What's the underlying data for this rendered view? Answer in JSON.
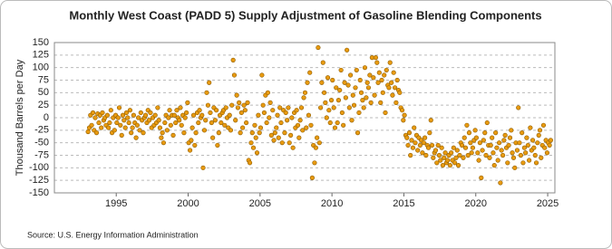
{
  "chart_data": {
    "type": "scatter",
    "title": "Monthly West Coast (PADD 5) Supply Adjustment of Gasoline Blending Components",
    "y_label": "Thousand Barrels per Day",
    "source": "Source: U.S. Energy Information Administration",
    "xlim": [
      1990.7,
      2025.5
    ],
    "xticks": [
      1995,
      2000,
      2005,
      2010,
      2015,
      2020,
      2025
    ],
    "ylim": [
      -150,
      150
    ],
    "yticks": [
      -150,
      -125,
      -100,
      -75,
      -50,
      -25,
      0,
      25,
      50,
      75,
      100,
      125,
      150
    ],
    "grid": true,
    "series": [
      {
        "color": "#e89a10",
        "x": [
          1993.04,
          1993.13,
          1993.21,
          1993.29,
          1993.38,
          1993.46,
          1993.54,
          1993.63,
          1993.71,
          1993.79,
          1993.88,
          1993.96,
          1994.04,
          1994.13,
          1994.21,
          1994.29,
          1994.38,
          1994.46,
          1994.54,
          1994.63,
          1994.71,
          1994.79,
          1994.88,
          1994.96,
          1995.04,
          1995.13,
          1995.21,
          1995.29,
          1995.38,
          1995.46,
          1995.54,
          1995.63,
          1995.71,
          1995.79,
          1995.88,
          1995.96,
          1996.04,
          1996.13,
          1996.21,
          1996.29,
          1996.38,
          1996.46,
          1996.54,
          1996.63,
          1996.71,
          1996.79,
          1996.88,
          1996.96,
          1997.04,
          1997.13,
          1997.21,
          1997.29,
          1997.38,
          1997.46,
          1997.54,
          1997.63,
          1997.71,
          1997.79,
          1997.88,
          1997.96,
          1998.04,
          1998.13,
          1998.21,
          1998.29,
          1998.38,
          1998.46,
          1998.54,
          1998.63,
          1998.71,
          1998.79,
          1998.88,
          1998.96,
          1999.04,
          1999.13,
          1999.21,
          1999.29,
          1999.38,
          1999.46,
          1999.54,
          1999.63,
          1999.71,
          1999.79,
          1999.88,
          1999.96,
          2000.04,
          2000.13,
          2000.21,
          2000.29,
          2000.38,
          2000.46,
          2000.54,
          2000.63,
          2000.71,
          2000.79,
          2000.88,
          2000.96,
          2001.04,
          2001.13,
          2001.21,
          2001.29,
          2001.38,
          2001.46,
          2001.54,
          2001.63,
          2001.71,
          2001.79,
          2001.88,
          2001.96,
          2002.04,
          2002.13,
          2002.21,
          2002.29,
          2002.38,
          2002.46,
          2002.54,
          2002.63,
          2002.71,
          2002.79,
          2002.88,
          2002.96,
          2003.04,
          2003.13,
          2003.21,
          2003.29,
          2003.38,
          2003.46,
          2003.54,
          2003.63,
          2003.71,
          2003.79,
          2003.88,
          2003.96,
          2004.04,
          2004.13,
          2004.21,
          2004.29,
          2004.38,
          2004.46,
          2004.54,
          2004.63,
          2004.71,
          2004.79,
          2004.88,
          2004.96,
          2005.04,
          2005.13,
          2005.21,
          2005.29,
          2005.38,
          2005.46,
          2005.54,
          2005.63,
          2005.71,
          2005.79,
          2005.88,
          2005.96,
          2006.04,
          2006.13,
          2006.21,
          2006.29,
          2006.38,
          2006.46,
          2006.54,
          2006.63,
          2006.71,
          2006.79,
          2006.88,
          2006.96,
          2007.04,
          2007.13,
          2007.21,
          2007.29,
          2007.38,
          2007.46,
          2007.54,
          2007.63,
          2007.71,
          2007.79,
          2007.88,
          2007.96,
          2008.04,
          2008.13,
          2008.21,
          2008.29,
          2008.38,
          2008.46,
          2008.54,
          2008.63,
          2008.71,
          2008.79,
          2008.88,
          2008.96,
          2009.04,
          2009.13,
          2009.21,
          2009.29,
          2009.38,
          2009.46,
          2009.54,
          2009.63,
          2009.71,
          2009.79,
          2009.88,
          2009.96,
          2010.04,
          2010.13,
          2010.21,
          2010.29,
          2010.38,
          2010.46,
          2010.54,
          2010.63,
          2010.71,
          2010.79,
          2010.88,
          2010.96,
          2011.04,
          2011.13,
          2011.21,
          2011.29,
          2011.38,
          2011.46,
          2011.54,
          2011.63,
          2011.71,
          2011.79,
          2011.88,
          2011.96,
          2012.04,
          2012.13,
          2012.21,
          2012.29,
          2012.38,
          2012.46,
          2012.54,
          2012.63,
          2012.71,
          2012.79,
          2012.88,
          2012.96,
          2013.04,
          2013.13,
          2013.21,
          2013.29,
          2013.38,
          2013.46,
          2013.54,
          2013.63,
          2013.71,
          2013.79,
          2013.88,
          2013.96,
          2014.04,
          2014.13,
          2014.21,
          2014.29,
          2014.38,
          2014.46,
          2014.54,
          2014.63,
          2014.71,
          2014.79,
          2014.88,
          2014.96,
          2015.04,
          2015.13,
          2015.21,
          2015.29,
          2015.38,
          2015.46,
          2015.54,
          2015.63,
          2015.71,
          2015.79,
          2015.88,
          2015.96,
          2016.04,
          2016.13,
          2016.21,
          2016.29,
          2016.38,
          2016.46,
          2016.54,
          2016.63,
          2016.71,
          2016.79,
          2016.88,
          2016.96,
          2017.04,
          2017.13,
          2017.21,
          2017.29,
          2017.38,
          2017.46,
          2017.54,
          2017.63,
          2017.71,
          2017.79,
          2017.88,
          2017.96,
          2018.04,
          2018.13,
          2018.21,
          2018.29,
          2018.38,
          2018.46,
          2018.54,
          2018.63,
          2018.71,
          2018.79,
          2018.88,
          2018.96,
          2019.04,
          2019.13,
          2019.21,
          2019.29,
          2019.38,
          2019.46,
          2019.54,
          2019.63,
          2019.71,
          2019.79,
          2019.88,
          2019.96,
          2020.04,
          2020.13,
          2020.21,
          2020.29,
          2020.38,
          2020.46,
          2020.54,
          2020.63,
          2020.71,
          2020.79,
          2020.88,
          2020.96,
          2021.04,
          2021.13,
          2021.21,
          2021.29,
          2021.38,
          2021.46,
          2021.54,
          2021.63,
          2021.71,
          2021.79,
          2021.88,
          2021.96,
          2022.04,
          2022.13,
          2022.21,
          2022.29,
          2022.38,
          2022.46,
          2022.54,
          2022.63,
          2022.71,
          2022.79,
          2022.88,
          2022.96,
          2023.04,
          2023.13,
          2023.21,
          2023.29,
          2023.38,
          2023.46,
          2023.54,
          2023.63,
          2023.71,
          2023.79,
          2023.88,
          2023.96,
          2024.04,
          2024.13,
          2024.21,
          2024.29,
          2024.38,
          2024.46,
          2024.54,
          2024.63,
          2024.71,
          2024.79,
          2024.88,
          2024.96,
          2025.04,
          2025.13,
          2025.21
        ],
        "values": [
          -28,
          -20,
          5,
          -15,
          10,
          -25,
          0,
          -30,
          8,
          -10,
          5,
          -20,
          10,
          -5,
          0,
          -15,
          5,
          -20,
          -10,
          15,
          -30,
          0,
          -25,
          5,
          -10,
          0,
          20,
          -15,
          -35,
          5,
          -5,
          -20,
          10,
          0,
          -10,
          15,
          -30,
          -20,
          5,
          -10,
          -40,
          -15,
          0,
          -25,
          10,
          -5,
          -30,
          0,
          5,
          -10,
          15,
          -5,
          10,
          -20,
          0,
          -15,
          5,
          -10,
          20,
          -5,
          -20,
          -40,
          -30,
          -50,
          -10,
          5,
          -25,
          0,
          15,
          -15,
          5,
          -35,
          5,
          -10,
          15,
          0,
          -5,
          20,
          -15,
          5,
          -30,
          0,
          10,
          30,
          -50,
          -65,
          -45,
          -20,
          5,
          -55,
          -30,
          10,
          -10,
          15,
          0,
          5,
          -100,
          -25,
          -5,
          50,
          25,
          70,
          10,
          -10,
          -40,
          20,
          -5,
          15,
          -55,
          -30,
          5,
          -10,
          10,
          15,
          -15,
          20,
          0,
          -20,
          5,
          -25,
          25,
          115,
          85,
          -5,
          45,
          20,
          30,
          -30,
          10,
          -20,
          25,
          15,
          -10,
          30,
          -85,
          -90,
          -50,
          -30,
          -60,
          -15,
          -40,
          -70,
          5,
          -30,
          -20,
          85,
          25,
          10,
          45,
          -10,
          50,
          0,
          30,
          -35,
          15,
          -45,
          -30,
          -20,
          5,
          -40,
          20,
          -10,
          -50,
          15,
          -30,
          10,
          -5,
          20,
          -50,
          -35,
          0,
          -60,
          10,
          -20,
          15,
          -15,
          -40,
          -5,
          20,
          -25,
          40,
          50,
          -20,
          70,
          5,
          90,
          -15,
          -120,
          -55,
          -90,
          -60,
          -40,
          140,
          -50,
          20,
          70,
          110,
          50,
          30,
          0,
          80,
          15,
          -10,
          35,
          75,
          20,
          -20,
          60,
          -10,
          35,
          55,
          95,
          10,
          -15,
          70,
          40,
          135,
          65,
          20,
          85,
          -5,
          45,
          25,
          60,
          95,
          -30,
          10,
          75,
          50,
          35,
          20,
          100,
          40,
          70,
          60,
          85,
          30,
          120,
          80,
          45,
          120,
          110,
          70,
          90,
          30,
          75,
          50,
          85,
          10,
          95,
          65,
          60,
          110,
          70,
          45,
          90,
          60,
          30,
          75,
          55,
          50,
          20,
          15,
          -5,
          5,
          -35,
          -40,
          -55,
          -30,
          -75,
          -45,
          -60,
          -20,
          -50,
          -35,
          -65,
          -40,
          -55,
          -45,
          -70,
          -50,
          -40,
          -75,
          -55,
          -60,
          -30,
          -5,
          -55,
          -80,
          -70,
          -65,
          -90,
          -55,
          -75,
          -85,
          -60,
          -95,
          -80,
          -70,
          -90,
          -85,
          -75,
          -95,
          -70,
          -85,
          -60,
          -90,
          -80,
          -65,
          -95,
          -75,
          -50,
          -55,
          -80,
          -40,
          -60,
          -15,
          -75,
          -30,
          -50,
          -70,
          -60,
          -45,
          -25,
          -40,
          -70,
          -85,
          -50,
          -120,
          -65,
          -45,
          -30,
          -75,
          -10,
          -55,
          -80,
          -55,
          -40,
          -70,
          -95,
          -30,
          -60,
          -85,
          -50,
          -130,
          -65,
          -75,
          -45,
          -35,
          -60,
          -90,
          -55,
          -40,
          -25,
          -70,
          -80,
          -100,
          -50,
          -65,
          20,
          -50,
          -75,
          -30,
          -90,
          -60,
          -70,
          -40,
          -55,
          -85,
          -20,
          -65,
          -45,
          -60,
          -75,
          -90,
          -50,
          -35,
          -25,
          -80,
          -55,
          -15,
          -60,
          -45,
          -70,
          -50,
          -55,
          -45
        ]
      }
    ]
  }
}
